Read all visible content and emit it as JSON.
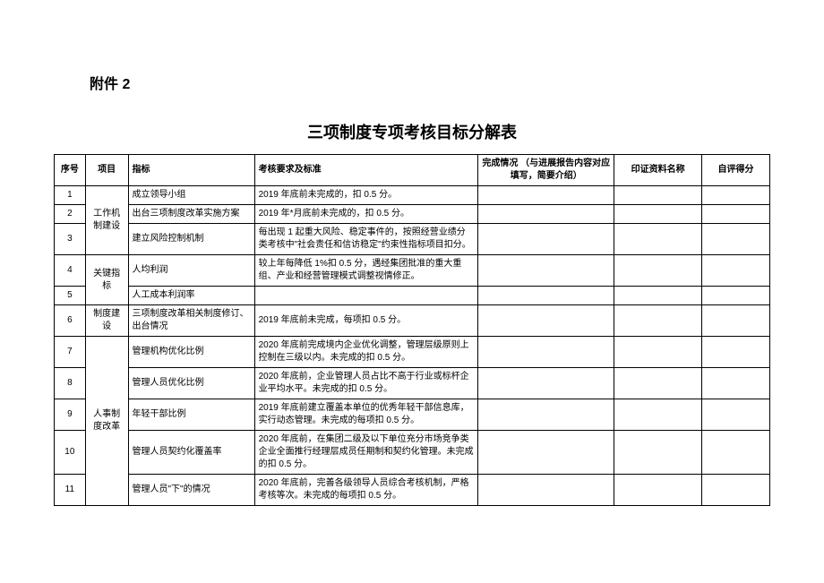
{
  "attachment_label": "附件 2",
  "title": "三项制度专项考核目标分解表",
  "columns": {
    "seq": "序号",
    "project": "项目",
    "indicator": "指标",
    "requirement": "考核要求及标准",
    "status": "完成情况\n（与进展报告内容对应填写，简要介绍）",
    "evidence": "印证资料名称",
    "score": "自评得分"
  },
  "rows": [
    {
      "seq": "1",
      "project": "工作机制建设",
      "indicator": "成立领导小组",
      "requirement": "2019 年底前未完成的，扣 0.5 分。",
      "status": "",
      "evidence": "",
      "score": ""
    },
    {
      "seq": "2",
      "indicator": "出台三项制度改革实施方案",
      "requirement": "2019 年*月底前未完成的，扣 0.5 分。",
      "status": "",
      "evidence": "",
      "score": ""
    },
    {
      "seq": "3",
      "indicator": "建立风险控制机制",
      "requirement": "每出现 1 起重大风险、稳定事件的，按照经营业绩分类考核中\"社会责任和信访稳定\"约束性指标项目扣分。",
      "status": "",
      "evidence": "",
      "score": ""
    },
    {
      "seq": "4",
      "project": "关键指标",
      "indicator": "人均利润",
      "requirement": "较上年每降低 1%扣 0.5 分，遇经集团批准的重大重组、产业和经营管理模式调整视情修正。",
      "status": "",
      "evidence": "",
      "score": ""
    },
    {
      "seq": "5",
      "indicator": "人工成本利润率",
      "requirement": "",
      "status": "",
      "evidence": "",
      "score": ""
    },
    {
      "seq": "6",
      "project": "制度建设",
      "indicator": "三项制度改革相关制度修订、出台情况",
      "requirement": "2019 年底前未完成，每项扣 0.5 分。",
      "status": "",
      "evidence": "",
      "score": ""
    },
    {
      "seq": "7",
      "project": "人事制度改革",
      "indicator": "管理机构优化比例",
      "requirement": "2020 年底前完成境内企业优化调整，管理层级原则上控制在三级以内。未完成的扣 0.5 分。",
      "status": "",
      "evidence": "",
      "score": ""
    },
    {
      "seq": "8",
      "indicator": "管理人员优化比例",
      "requirement": "2020 年底前，企业管理人员占比不高于行业或标杆企业平均水平。未完成的扣 0.5 分。",
      "status": "",
      "evidence": "",
      "score": ""
    },
    {
      "seq": "9",
      "indicator": "年轻干部比例",
      "requirement": "2019 年底前建立覆盖本单位的优秀年轻干部信息库，实行动态管理。未完成的每项扣 0.5 分。",
      "status": "",
      "evidence": "",
      "score": ""
    },
    {
      "seq": "10",
      "indicator": "管理人员契约化覆盖率",
      "requirement": "2020 年底前，在集团二级及以下单位充分市场竞争类企业全面推行经理层成员任期制和契约化管理。未完成的扣 0.5 分。",
      "status": "",
      "evidence": "",
      "score": ""
    },
    {
      "seq": "11",
      "indicator": "管理人员\"下\"的情况",
      "requirement": "2020 年底前，完善各级领导人员综合考核机制，严格考核等次。未完成的每项扣 0.5 分。",
      "status": "",
      "evidence": "",
      "score": ""
    }
  ]
}
